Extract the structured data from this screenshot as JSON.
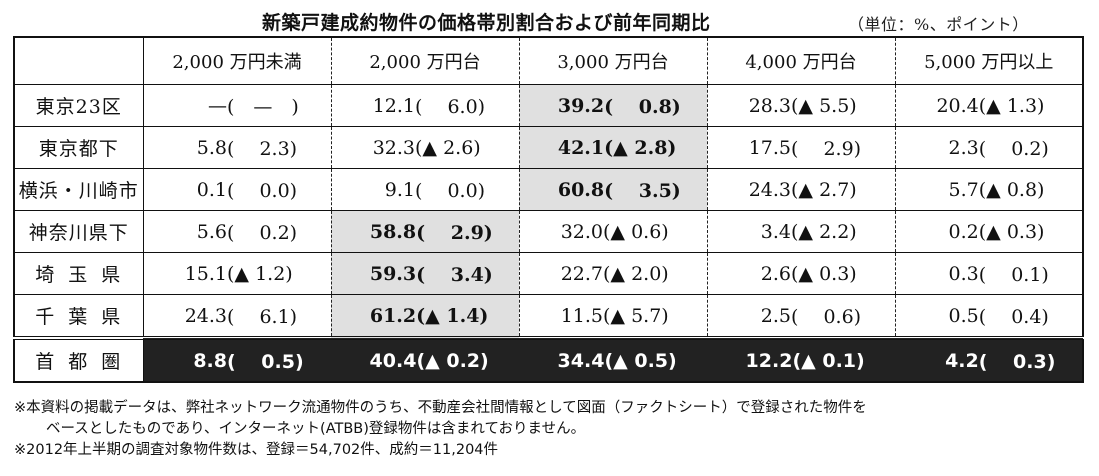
{
  "header": {
    "title": "新築戸建成約物件の価格帯別割合および前年同期比",
    "unit": "（単位：%、ポイント）"
  },
  "table": {
    "columns": [
      "",
      "2,000 万円未満",
      "2,000 万円台",
      "3,000 万円台",
      "4,000 万円台",
      "5,000 万円以上"
    ],
    "rows": [
      {
        "label": "東京23区",
        "cells": [
          {
            "value": "—",
            "change": "(　—　)",
            "highlight": false
          },
          {
            "value": "12.1",
            "change": "(　 6.0)",
            "highlight": false
          },
          {
            "value": "39.2",
            "change": "(　 0.8)",
            "highlight": true
          },
          {
            "value": "28.3",
            "change": "(▲ 5.5)",
            "highlight": false
          },
          {
            "value": "20.4",
            "change": "(▲ 1.3)",
            "highlight": false
          }
        ]
      },
      {
        "label": "東京都下",
        "cells": [
          {
            "value": "5.8",
            "change": "(　 2.3)",
            "highlight": false
          },
          {
            "value": "32.3",
            "change": "(▲ 2.6)",
            "highlight": false
          },
          {
            "value": "42.1",
            "change": "(▲ 2.8)",
            "highlight": true
          },
          {
            "value": "17.5",
            "change": "(　 2.9)",
            "highlight": false
          },
          {
            "value": "2.3",
            "change": "(　 0.2)",
            "highlight": false
          }
        ]
      },
      {
        "label": "横浜・川崎市",
        "cells": [
          {
            "value": "0.1",
            "change": "(　 0.0)",
            "highlight": false
          },
          {
            "value": "9.1",
            "change": "(　 0.0)",
            "highlight": false
          },
          {
            "value": "60.8",
            "change": "(　 3.5)",
            "highlight": true
          },
          {
            "value": "24.3",
            "change": "(▲ 2.7)",
            "highlight": false
          },
          {
            "value": "5.7",
            "change": "(▲ 0.8)",
            "highlight": false
          }
        ]
      },
      {
        "label": "神奈川県下",
        "cells": [
          {
            "value": "5.6",
            "change": "(　 0.2)",
            "highlight": false
          },
          {
            "value": "58.8",
            "change": "(　 2.9)",
            "highlight": true
          },
          {
            "value": "32.0",
            "change": "(▲ 0.6)",
            "highlight": false
          },
          {
            "value": "3.4",
            "change": "(▲ 2.2)",
            "highlight": false
          },
          {
            "value": "0.2",
            "change": "(▲ 0.3)",
            "highlight": false
          }
        ]
      },
      {
        "label": "埼玉県",
        "cells": [
          {
            "value": "15.1",
            "change": "(▲ 1.2)",
            "highlight": false
          },
          {
            "value": "59.3",
            "change": "(　 3.4)",
            "highlight": true
          },
          {
            "value": "22.7",
            "change": "(▲ 2.0)",
            "highlight": false
          },
          {
            "value": "2.6",
            "change": "(▲ 0.3)",
            "highlight": false
          },
          {
            "value": "0.3",
            "change": "(　 0.1)",
            "highlight": false
          }
        ]
      },
      {
        "label": "千葉県",
        "cells": [
          {
            "value": "24.3",
            "change": "(　 6.1)",
            "highlight": false
          },
          {
            "value": "61.2",
            "change": "(▲ 1.4)",
            "highlight": true
          },
          {
            "value": "11.5",
            "change": "(▲ 5.7)",
            "highlight": false
          },
          {
            "value": "2.5",
            "change": "(　 0.6)",
            "highlight": false
          },
          {
            "value": "0.5",
            "change": "(　 0.4)",
            "highlight": false
          }
        ]
      }
    ],
    "total": {
      "label": "首都圏",
      "cells": [
        {
          "value": "8.8",
          "change": "(　 0.5)"
        },
        {
          "value": "40.4",
          "change": "(▲ 0.2)"
        },
        {
          "value": "34.4",
          "change": "(▲ 0.5)"
        },
        {
          "value": "12.2",
          "change": "(▲ 0.1)"
        },
        {
          "value": "4.2",
          "change": "(　 0.3)"
        }
      ]
    }
  },
  "notes": {
    "line1": "※本資料の掲載データは、弊社ネットワーク流通物件のうち、不動産会社間情報として図面（ファクトシート）で登録された物件を",
    "line2": "ベースとしたものであり、インターネット(ATBB)登録物件は含まれておりません。",
    "line3": "※2012年上半期の調査対象物件数は、登録＝54,702件、成約＝11,204件"
  },
  "colors": {
    "highlight_bg": "#e0e0e0",
    "total_bg": "#222222",
    "total_fg": "#ffffff"
  }
}
